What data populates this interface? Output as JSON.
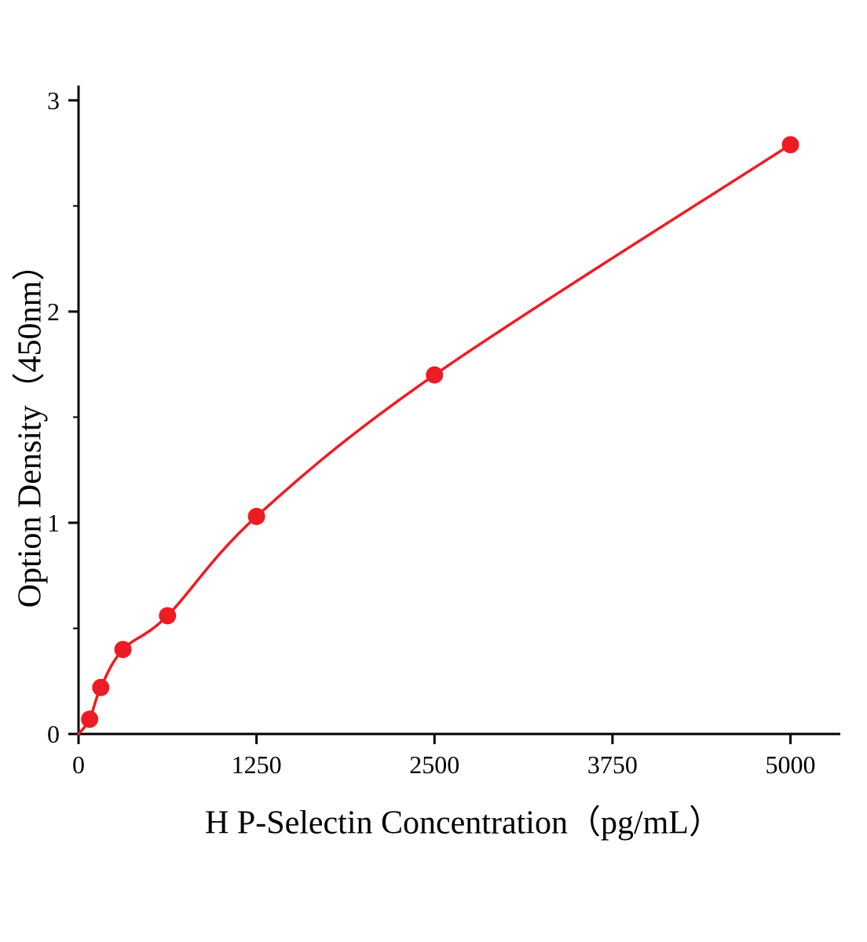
{
  "chart_data": {
    "type": "line",
    "title": "",
    "xlabel": "H P-Selectin Concentration（pg/mL）",
    "ylabel": "Option Density（450nm）",
    "x": [
      78,
      156,
      312,
      625,
      1250,
      2500,
      5000
    ],
    "y": [
      0.07,
      0.22,
      0.4,
      0.56,
      1.03,
      1.7,
      2.79
    ],
    "curve_origin": {
      "x": 0,
      "y": 0.0
    },
    "x_ticks": [
      0,
      1250,
      2500,
      3750,
      5000
    ],
    "y_ticks": [
      0,
      1,
      2,
      3
    ],
    "y_minor_ticks": [
      0.5,
      1.5,
      2.5
    ],
    "xlim": [
      0,
      5350
    ],
    "ylim": [
      0,
      3.07
    ],
    "grid": false,
    "legend": "none",
    "line_color": "#ed1c24",
    "marker_color": "#ed1c24",
    "axis_color": "#000000",
    "marker_radius": 11,
    "line_width": 3.5
  }
}
